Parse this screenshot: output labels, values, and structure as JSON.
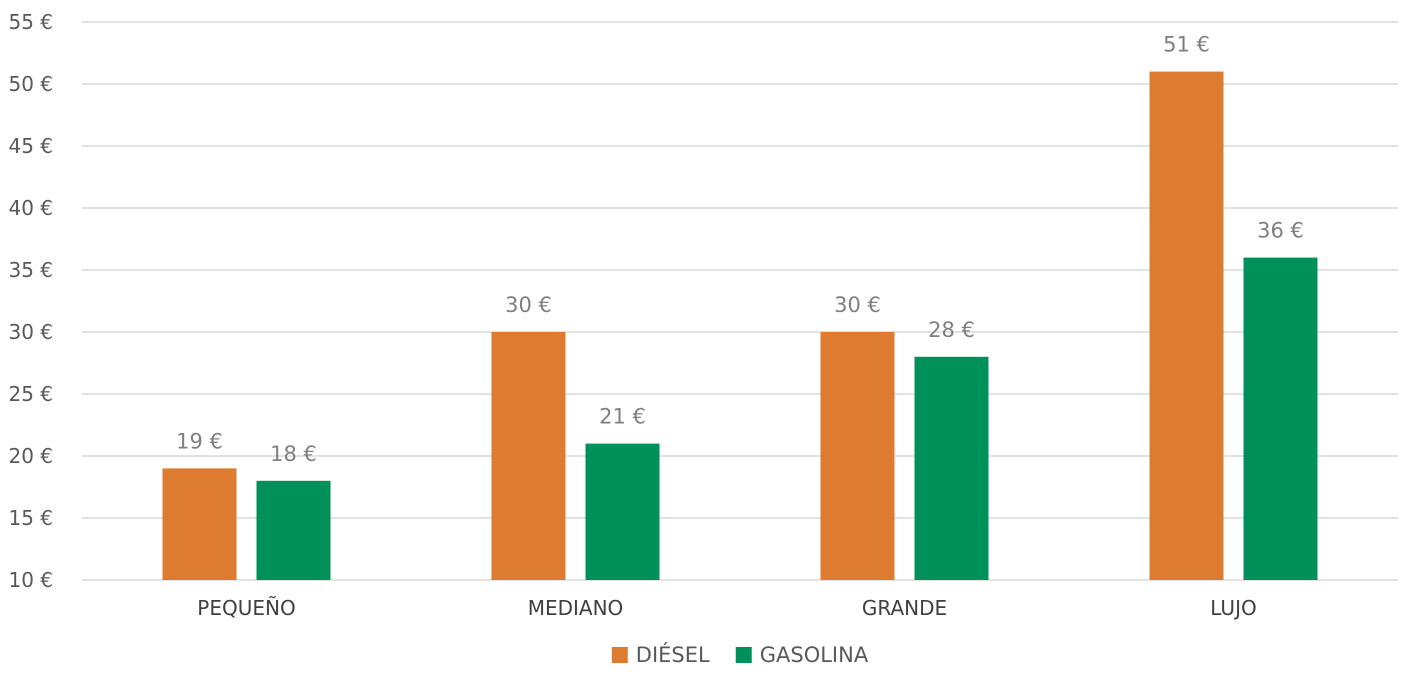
{
  "chart_data": {
    "type": "bar",
    "categories": [
      "PEQUEÑO",
      "MEDIANO",
      "GRANDE",
      "LUJO"
    ],
    "series": [
      {
        "name": "DIÉSEL",
        "values": [
          19,
          30,
          30,
          51
        ],
        "color": "#dd7c31"
      },
      {
        "name": "GASOLINA",
        "values": [
          18,
          21,
          28,
          36
        ],
        "color": "#00915a"
      }
    ],
    "ylim": [
      10,
      55
    ],
    "yticks": [
      10,
      15,
      20,
      25,
      30,
      35,
      40,
      45,
      50,
      55
    ],
    "tick_suffix": " €",
    "data_label_suffix": " €",
    "grid": true,
    "legend_position": "bottom"
  }
}
